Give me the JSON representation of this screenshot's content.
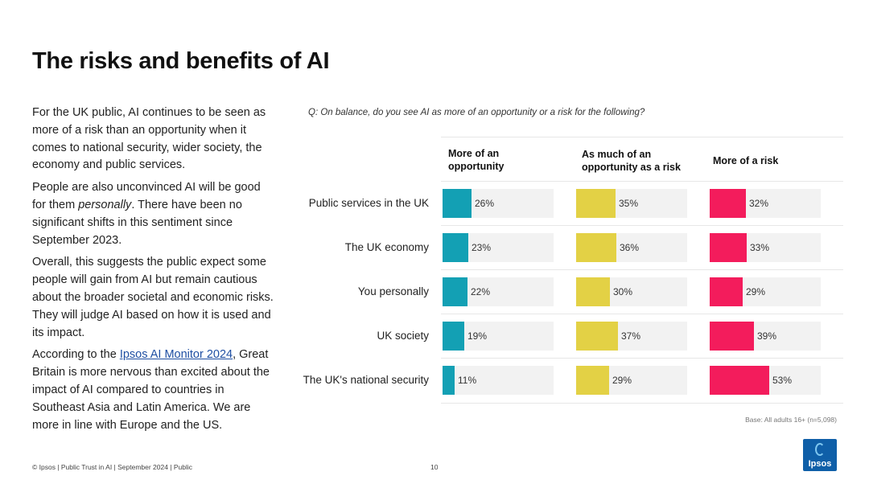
{
  "title": "The risks and benefits of AI",
  "body": {
    "p1": "For the UK public, AI continues to be seen as more of a risk than an opportunity when it comes to national security, wider society, the economy and public services.",
    "p2_pre": "People are also unconvinced AI will be good for them ",
    "p2_em": "personally",
    "p2_post": ". There have been no significant shifts in this sentiment since September 2023.",
    "p3": "Overall, this suggests the public expect some people will gain from AI but remain cautious about the broader societal and economic risks. They will judge AI based on how it is used and its impact.",
    "p4_pre": "According to the ",
    "p4_link": "Ipsos AI Monitor 2024",
    "p4_post": ", Great Britain is more nervous than excited about the impact of AI compared to countries in Southeast Asia and Latin America.  We are more in line with Europe and the US."
  },
  "chart_data": {
    "type": "bar",
    "title": "Q: On balance, do you see AI as more of an opportunity or a risk for the following?",
    "categories": [
      "Public services in the UK",
      "The UK economy",
      "You personally",
      "UK society",
      "The UK's national security"
    ],
    "series": [
      {
        "name": "More of an opportunity",
        "color": "#13a0b4",
        "values": [
          26,
          23,
          22,
          19,
          11
        ]
      },
      {
        "name": "As much of an opportunity as a risk",
        "color": "#e3d145",
        "values": [
          35,
          36,
          30,
          37,
          29
        ]
      },
      {
        "name": "More of a risk",
        "color": "#f31c5c",
        "values": [
          32,
          33,
          29,
          39,
          53
        ]
      }
    ],
    "value_suffix": "%",
    "xlim": [
      0,
      100
    ]
  },
  "base_note": "Base: All adults 16+ (n=5,098)",
  "footer": "© Ipsos | Public Trust in AI | September 2024 | Public",
  "page_number": "10",
  "logo_text": "Ipsos"
}
